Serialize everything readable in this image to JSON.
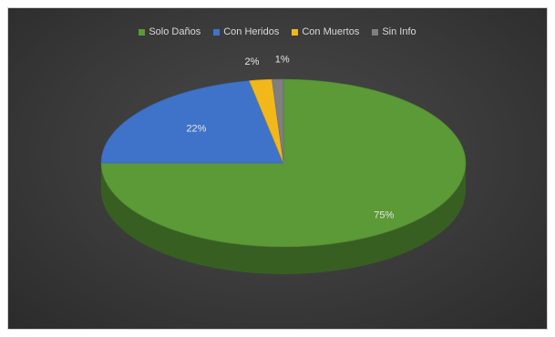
{
  "chart_data": {
    "type": "pie",
    "title": "",
    "categories": [
      "Solo Daños",
      "Con Heridos",
      "Con Muertos",
      "Sin Info"
    ],
    "values": [
      75,
      22,
      2,
      1
    ],
    "data_labels": [
      "75%",
      "22%",
      "2%",
      "1%"
    ],
    "colors": [
      "#5b9a37",
      "#3f73c9",
      "#f2b81b",
      "#7f7f7f"
    ],
    "legend_position": "top",
    "style": "3d-pie"
  }
}
